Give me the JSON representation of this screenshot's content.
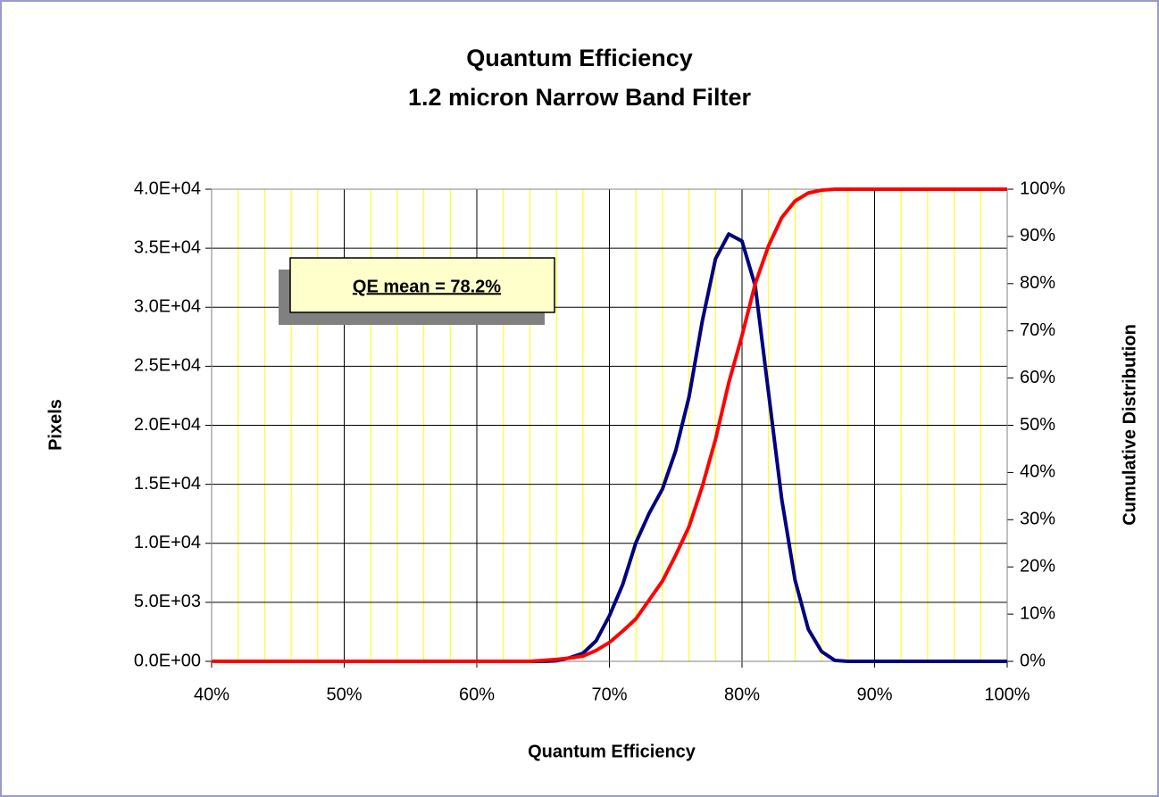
{
  "chart_data": {
    "type": "line",
    "title": "Quantum Efficiency",
    "subtitle": "1.2 micron Narrow Band Filter",
    "xlabel": "Quantum Efficiency",
    "ylabel": "Pixels",
    "y2label": "Cumulative Distribution",
    "annotation": "QE mean = 78.2%",
    "x": [
      40,
      41,
      42,
      43,
      44,
      45,
      46,
      47,
      48,
      49,
      50,
      51,
      52,
      53,
      54,
      55,
      56,
      57,
      58,
      59,
      60,
      61,
      62,
      63,
      64,
      65,
      66,
      67,
      68,
      69,
      70,
      71,
      72,
      73,
      74,
      75,
      76,
      77,
      78,
      79,
      80,
      81,
      82,
      83,
      84,
      85,
      86,
      87,
      88,
      89,
      90,
      91,
      92,
      93,
      94,
      95,
      96,
      97,
      98,
      99,
      100
    ],
    "series": [
      {
        "name": "Pixels",
        "color": "#000080",
        "axis": "y",
        "values": [
          0,
          0,
          0,
          0,
          0,
          0,
          0,
          0,
          0,
          0,
          0,
          0,
          0,
          0,
          0,
          0,
          0,
          0,
          0,
          0,
          0,
          0,
          0,
          0,
          0,
          0,
          50,
          300,
          680,
          1740,
          3860,
          6500,
          10060,
          12550,
          14600,
          17850,
          22380,
          28800,
          34100,
          36200,
          35600,
          31800,
          22760,
          13700,
          6880,
          2720,
          830,
          80,
          0,
          0,
          0,
          0,
          0,
          0,
          0,
          0,
          0,
          0,
          0,
          0,
          0
        ]
      },
      {
        "name": "Cumulative Distribution",
        "color": "#ff0000",
        "axis": "y2",
        "values": [
          0,
          0,
          0,
          0,
          0,
          0,
          0,
          0,
          0,
          0,
          0,
          0,
          0,
          0,
          0,
          0,
          0,
          0,
          0,
          0,
          0,
          0,
          0,
          0,
          0,
          0.2,
          0.4,
          0.7,
          1.1,
          2.3,
          4,
          6.4,
          9,
          13,
          17,
          22.5,
          28.5,
          37,
          47,
          59,
          69,
          80,
          88,
          94,
          97.5,
          99.2,
          99.8,
          100,
          100,
          100,
          100,
          100,
          100,
          100,
          100,
          100,
          100,
          100,
          100,
          100,
          100
        ]
      }
    ],
    "xlim": [
      40,
      100
    ],
    "xticks": [
      {
        "value": 40,
        "label": "40%"
      },
      {
        "value": 50,
        "label": "50%"
      },
      {
        "value": 60,
        "label": "60%"
      },
      {
        "value": 70,
        "label": "70%"
      },
      {
        "value": 80,
        "label": "80%"
      },
      {
        "value": 90,
        "label": "90%"
      },
      {
        "value": 100,
        "label": "100%"
      }
    ],
    "ylim": [
      0,
      40000
    ],
    "yticks": [
      {
        "value": 0,
        "label": "0.0E+00"
      },
      {
        "value": 5000,
        "label": "5.0E+03"
      },
      {
        "value": 10000,
        "label": "1.0E+04"
      },
      {
        "value": 15000,
        "label": "1.5E+04"
      },
      {
        "value": 20000,
        "label": "2.0E+04"
      },
      {
        "value": 25000,
        "label": "2.5E+04"
      },
      {
        "value": 30000,
        "label": "3.0E+04"
      },
      {
        "value": 35000,
        "label": "3.5E+04"
      },
      {
        "value": 40000,
        "label": "4.0E+04"
      }
    ],
    "y2lim": [
      0,
      100
    ],
    "y2ticks": [
      {
        "value": 0,
        "label": "0%"
      },
      {
        "value": 10,
        "label": "10%"
      },
      {
        "value": 20,
        "label": "20%"
      },
      {
        "value": 30,
        "label": "30%"
      },
      {
        "value": 40,
        "label": "40%"
      },
      {
        "value": 50,
        "label": "50%"
      },
      {
        "value": 60,
        "label": "60%"
      },
      {
        "value": 70,
        "label": "70%"
      },
      {
        "value": 80,
        "label": "80%"
      },
      {
        "value": 90,
        "label": "90%"
      },
      {
        "value": 100,
        "label": "100%"
      }
    ],
    "grid": true,
    "minor_grid": {
      "step": 2,
      "color": "#ffff00"
    }
  }
}
